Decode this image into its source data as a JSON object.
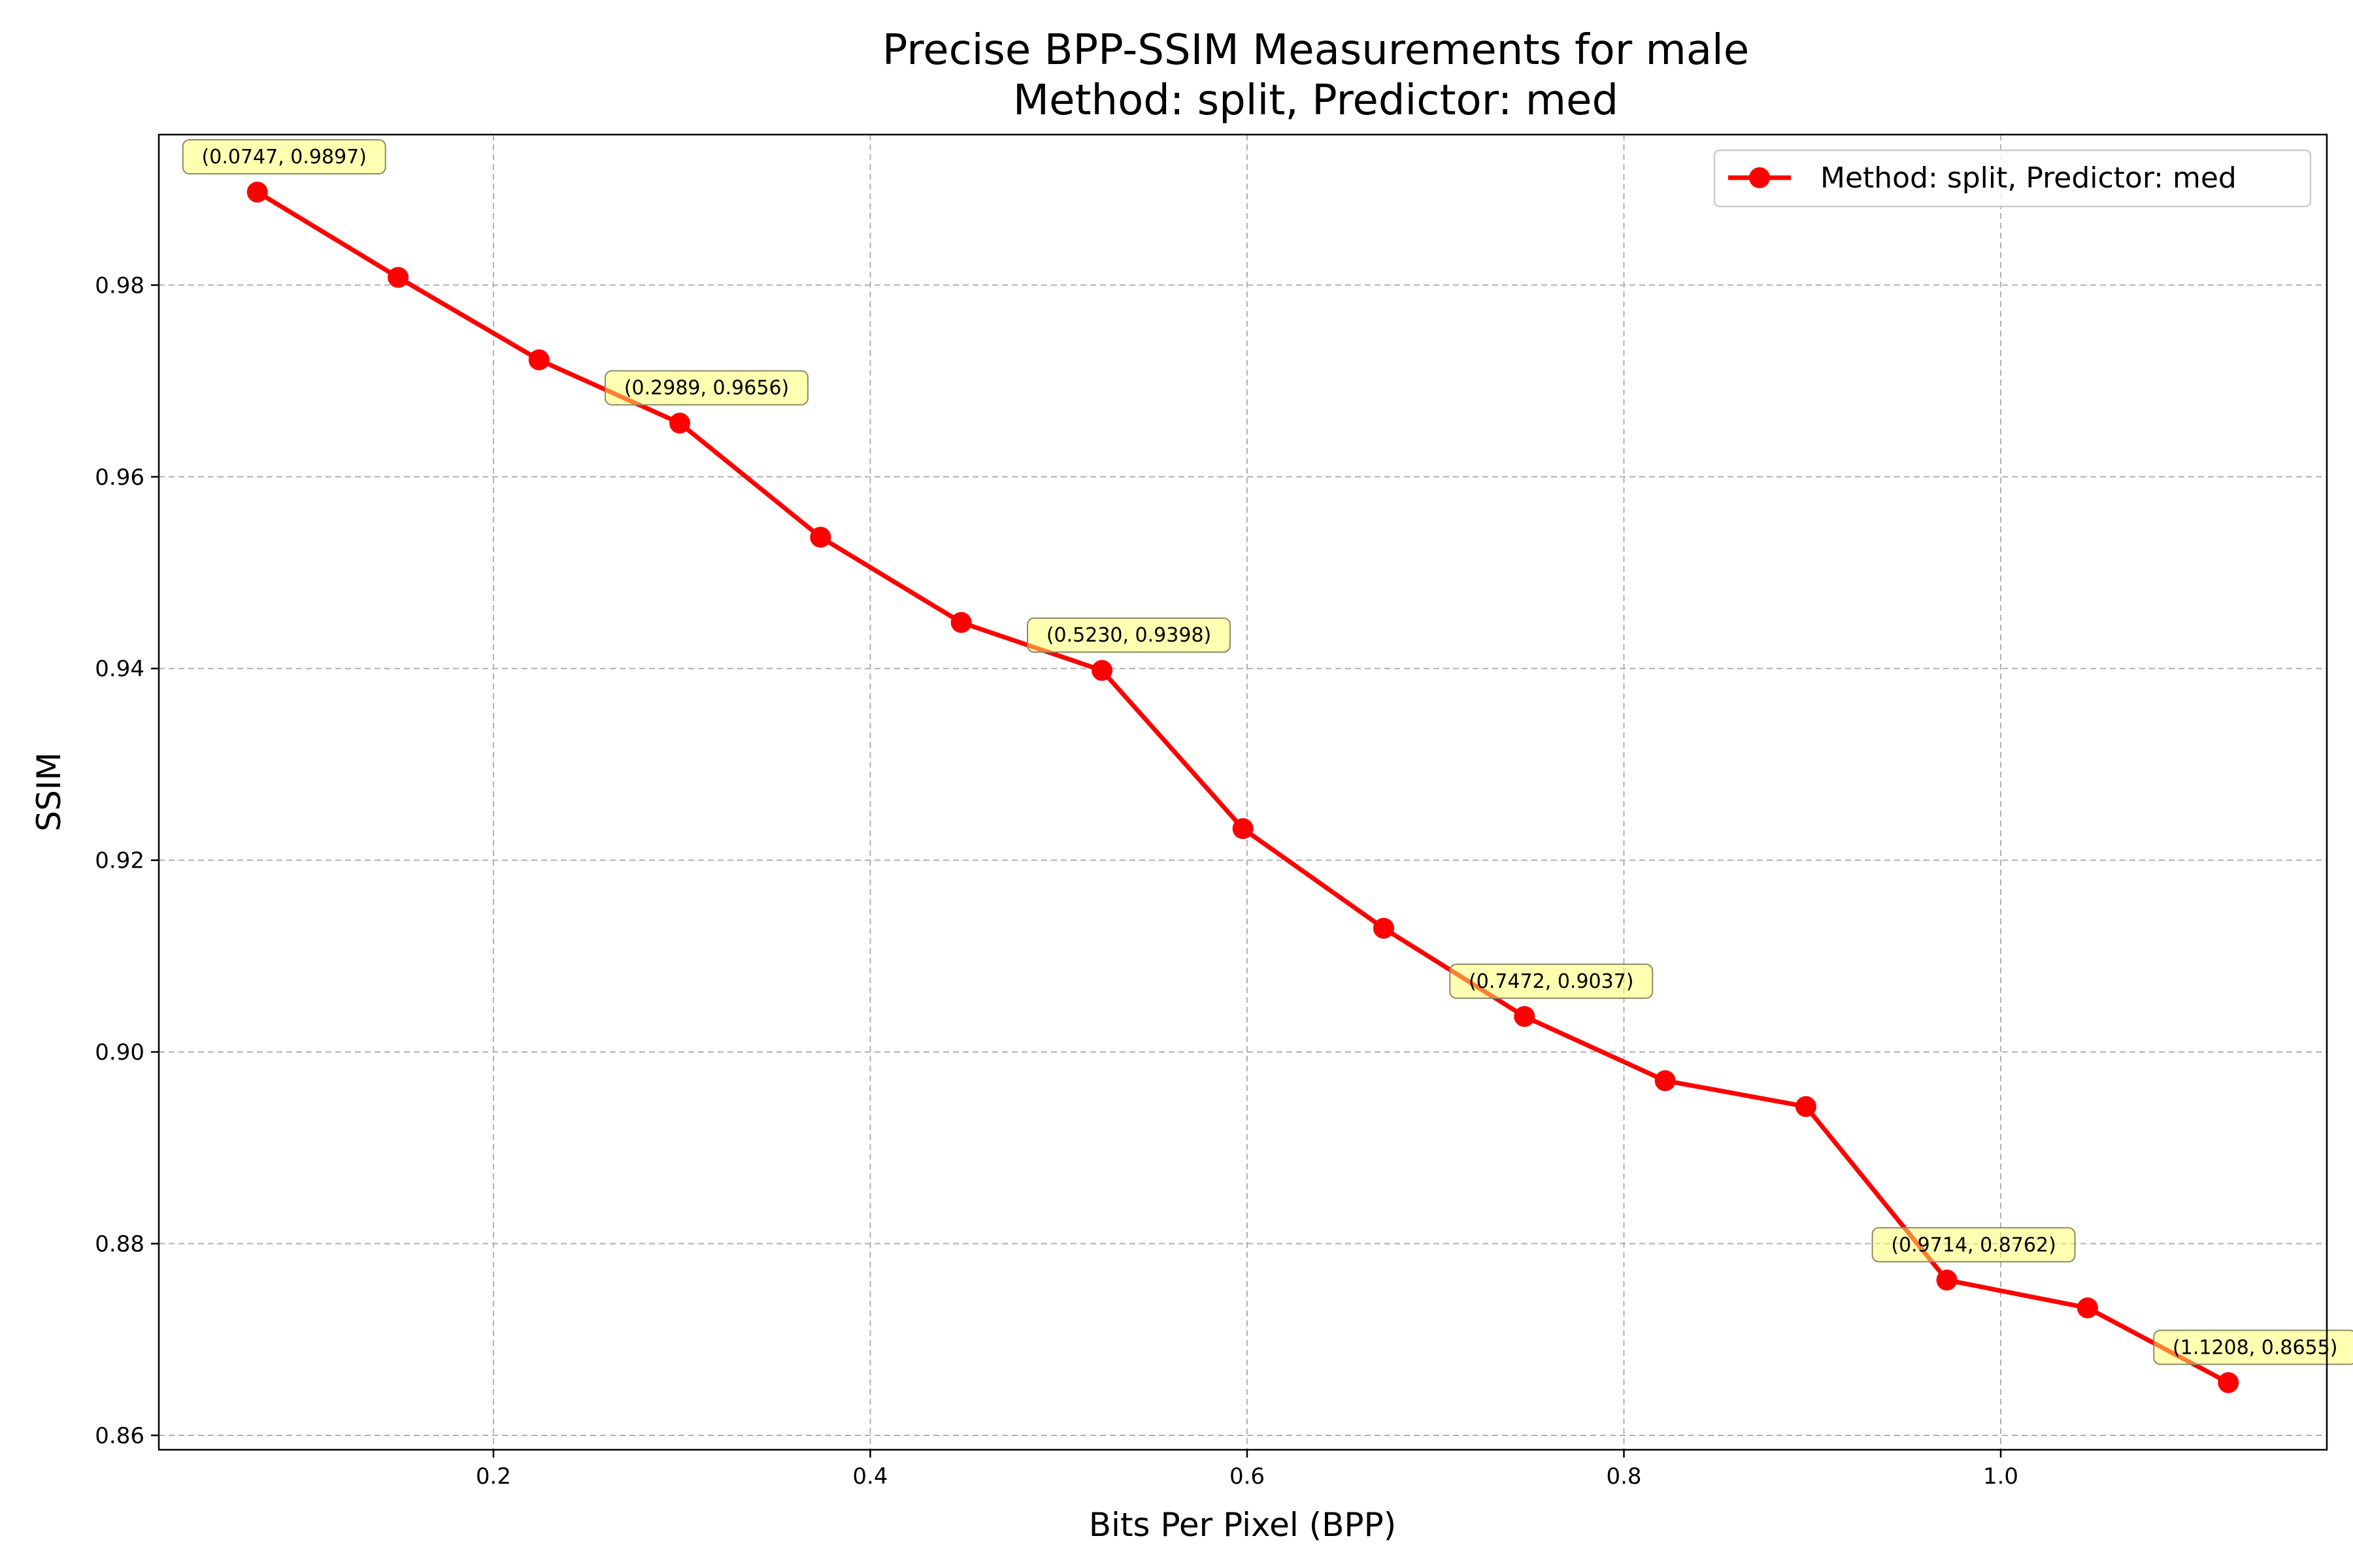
{
  "chart_data": {
    "type": "line",
    "title": "Precise BPP-SSIM Measurements for male",
    "subtitle": "Method: split, Predictor: med",
    "xlabel": "Bits Per Pixel (BPP)",
    "ylabel": "SSIM",
    "xlim": [
      0.0224,
      1.1731
    ],
    "ylim": [
      0.8585,
      0.9957
    ],
    "x_ticks": [
      0.2,
      0.4,
      0.6,
      0.8,
      1.0
    ],
    "x_tick_labels": [
      "0.2",
      "0.4",
      "0.6",
      "0.8",
      "1.0"
    ],
    "y_ticks": [
      0.86,
      0.88,
      0.9,
      0.92,
      0.94,
      0.96,
      0.98
    ],
    "y_tick_labels": [
      "0.86",
      "0.88",
      "0.90",
      "0.92",
      "0.94",
      "0.96",
      "0.98"
    ],
    "grid": true,
    "legend_position": "top-right",
    "series": [
      {
        "name": "Method: split, Predictor: med",
        "color": "#ff0000",
        "marker": "circle",
        "x": [
          0.0747,
          0.1494,
          0.2242,
          0.2989,
          0.3736,
          0.4483,
          0.523,
          0.5978,
          0.6725,
          0.7472,
          0.8219,
          0.8966,
          0.9714,
          1.0461,
          1.1208
        ],
        "y": [
          0.9897,
          0.9808,
          0.9722,
          0.9656,
          0.9537,
          0.9448,
          0.9398,
          0.9233,
          0.9129,
          0.9037,
          0.897,
          0.8943,
          0.8762,
          0.8733,
          0.8655
        ]
      }
    ],
    "annotations": [
      {
        "text": "(0.0747, 0.9897)",
        "x": 0.0747,
        "y": 0.9897
      },
      {
        "text": "(0.2989, 0.9656)",
        "x": 0.2989,
        "y": 0.9656
      },
      {
        "text": "(0.5230, 0.9398)",
        "x": 0.523,
        "y": 0.9398
      },
      {
        "text": "(0.7472, 0.9037)",
        "x": 0.7472,
        "y": 0.9037
      },
      {
        "text": "(0.9714, 0.8762)",
        "x": 0.9714,
        "y": 0.8762
      },
      {
        "text": "(1.1208, 0.8655)",
        "x": 1.1208,
        "y": 0.8655
      }
    ]
  }
}
